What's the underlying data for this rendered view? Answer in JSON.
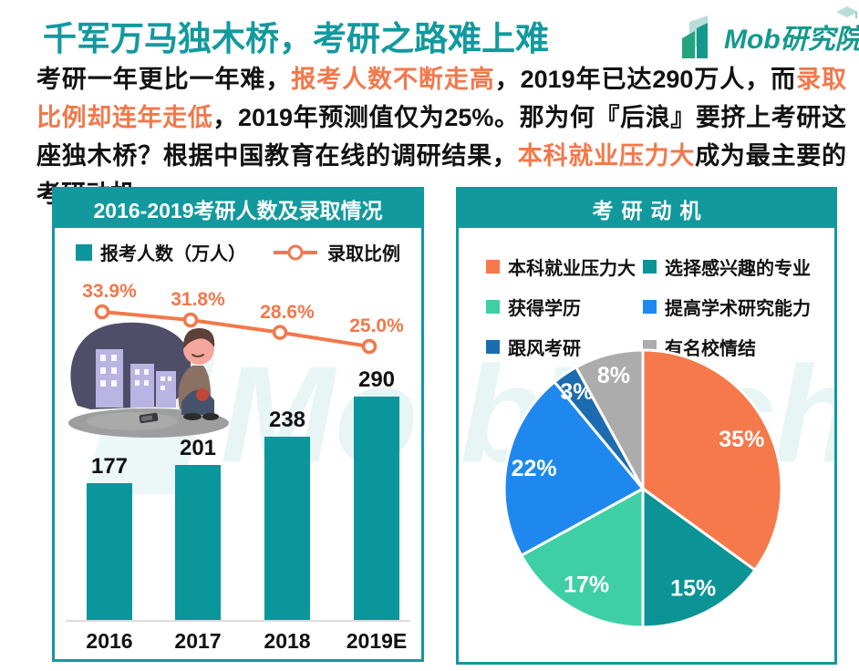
{
  "header": {
    "title": "千军万马独木桥，考研之路难上难",
    "logo": {
      "en": "Mob",
      "cn": "研究院"
    }
  },
  "intro": {
    "segments": [
      {
        "text": "考研一年更比一年难，",
        "highlight": false
      },
      {
        "text": "报考人数不断走高",
        "highlight": true
      },
      {
        "text": "，2019年已达290万人，而",
        "highlight": false
      },
      {
        "text": "录取比例却连年走低",
        "highlight": true
      },
      {
        "text": "，2019年预测值仅为25%。那为何『后浪』要挤上考研这座独木桥？根据中国教育在线的调研结果，",
        "highlight": false
      },
      {
        "text": "本科就业压力大",
        "highlight": true
      },
      {
        "text": "成为最主要的考研动机",
        "highlight": false
      }
    ]
  },
  "chart_data": [
    {
      "type": "bar+line",
      "title": "2016-2019考研人数及录取情况",
      "categories": [
        "2016",
        "2017",
        "2018",
        "2019E"
      ],
      "series": [
        {
          "name": "报考人数（万人）",
          "type": "bar",
          "values": [
            177,
            201,
            238,
            290
          ],
          "color": "#0a969b"
        },
        {
          "name": "录取比例",
          "type": "line",
          "values": [
            33.9,
            31.8,
            28.6,
            25.0
          ],
          "labels": [
            "33.9%",
            "31.8%",
            "28.6%",
            "25.0%"
          ],
          "color": "#f2784b"
        }
      ],
      "legend_position": "top",
      "grid": false
    },
    {
      "type": "pie",
      "title": "考研动机",
      "slices": [
        {
          "label": "本科就业压力大",
          "value": 35,
          "display": "35%",
          "color": "#f5794a"
        },
        {
          "label": "选择感兴趣的专业",
          "value": 15,
          "display": "15%",
          "color": "#0b9396"
        },
        {
          "label": "获得学历",
          "value": 17,
          "display": "17%",
          "color": "#3ed0a4"
        },
        {
          "label": "提高学术研究能力",
          "value": 22,
          "display": "22%",
          "color": "#1f88ef"
        },
        {
          "label": "跟风考研",
          "value": 3,
          "display": "3%",
          "color": "#1b6cb0"
        },
        {
          "label": "有名校情结",
          "value": 8,
          "display": "8%",
          "color": "#acacac"
        }
      ],
      "legend_position": "top",
      "start_angle_deg": 0,
      "direction": "clockwise"
    }
  ],
  "watermark": {
    "text": "MobTech"
  },
  "colors": {
    "primary_teal": "#12999e",
    "bar_teal": "#0a969b",
    "accent_orange": "#f2784b",
    "text_dark": "#121212"
  }
}
